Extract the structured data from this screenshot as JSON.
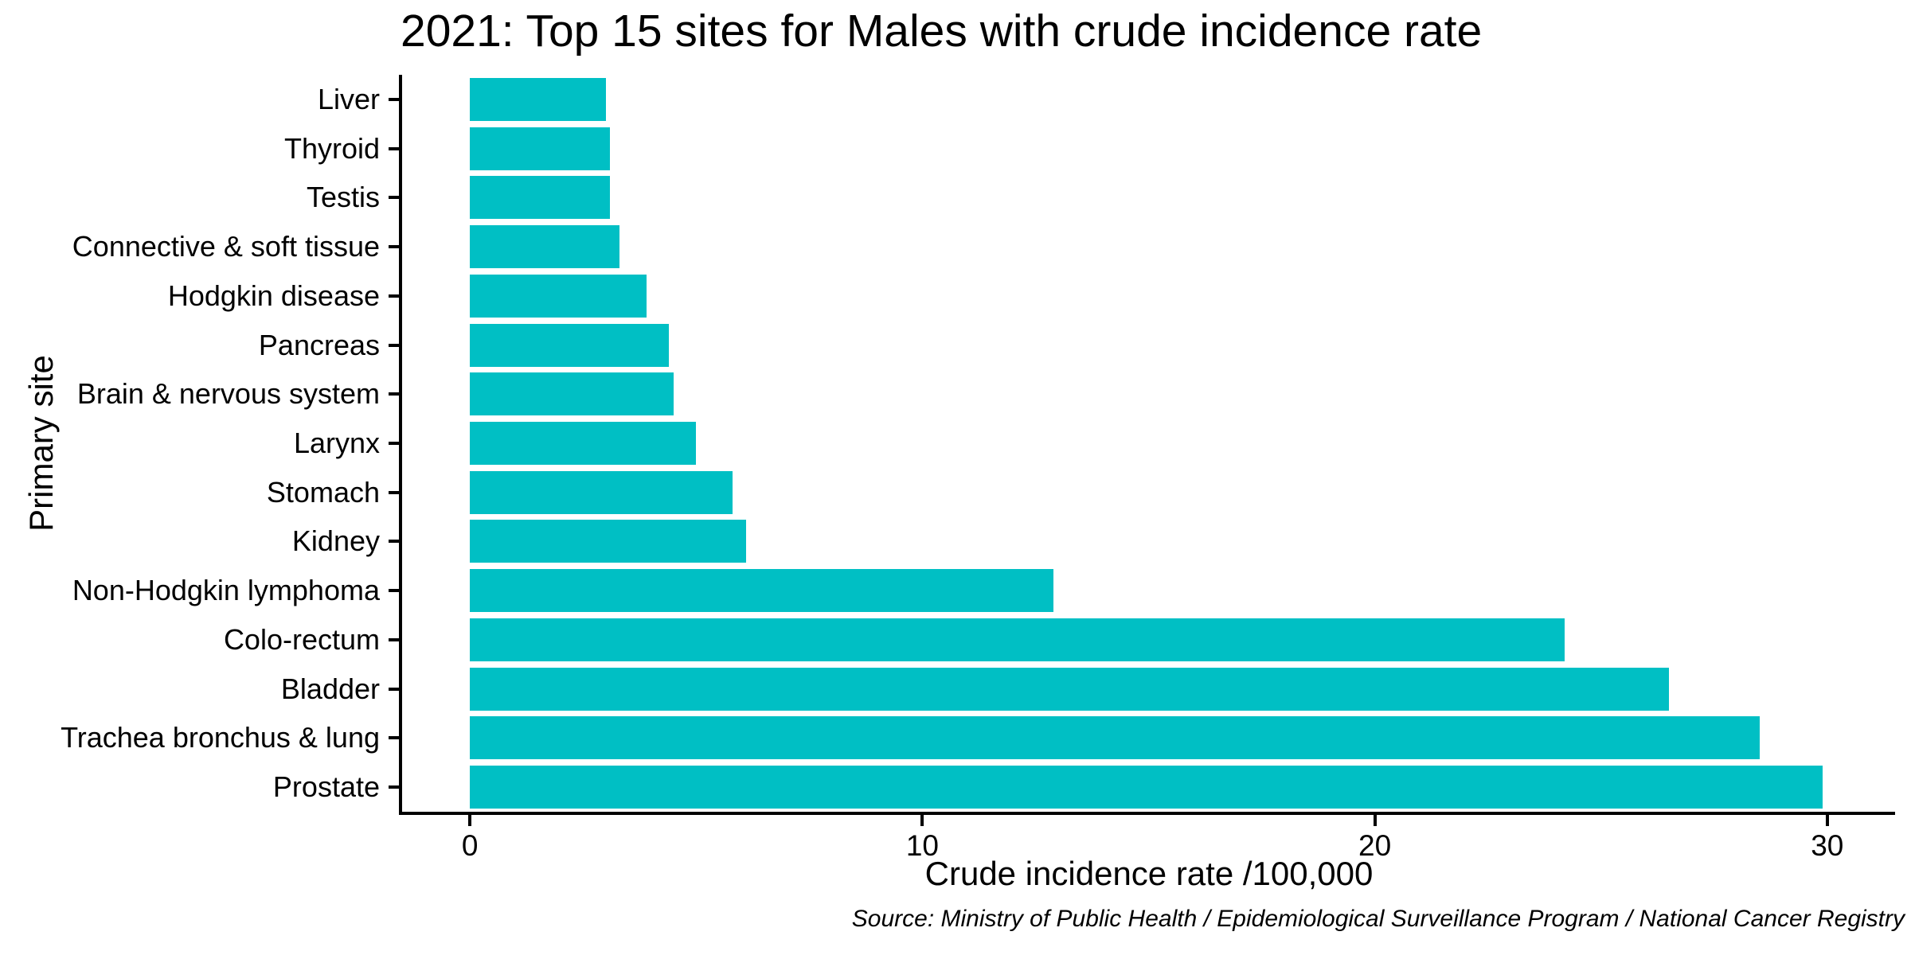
{
  "figure": {
    "title": "2021: Top 15 sites for Males with crude incidence rate",
    "source_note": "Source: Ministry of Public Health / Epidemiological Surveillance Program / National Cancer Registry"
  },
  "chart_data": {
    "type": "bar",
    "orientation": "horizontal",
    "title": "2021: Top 15 sites for Males with crude incidence rate",
    "xlabel": "Crude incidence rate /100,000",
    "ylabel": "Primary site",
    "categories": [
      "Liver",
      "Thyroid",
      "Testis",
      "Connective & soft tissue",
      "Hodgkin disease",
      "Pancreas",
      "Brain & nervous system",
      "Larynx",
      "Stomach",
      "Kidney",
      "Non-Hodgkin lymphoma",
      "Colo-rectum",
      "Bladder",
      "Trachea bronchus & lung",
      "Prostate"
    ],
    "values": [
      3.0,
      3.1,
      3.1,
      3.3,
      3.9,
      4.4,
      4.5,
      5.0,
      5.8,
      6.1,
      12.9,
      24.2,
      26.5,
      28.5,
      29.9
    ],
    "x_ticks": [
      0,
      10,
      20,
      30
    ],
    "xlim": [
      -1.5,
      31.5
    ],
    "grid": false,
    "legend": "none",
    "sort_order": "ascending top to bottom",
    "bar_color": "#00BFC4",
    "axis_color": "#000000",
    "text_color": "#000000",
    "background_color": "#FFFFFF",
    "source": "Source: Ministry of Public Health / Epidemiological Surveillance Program / National Cancer Registry"
  }
}
